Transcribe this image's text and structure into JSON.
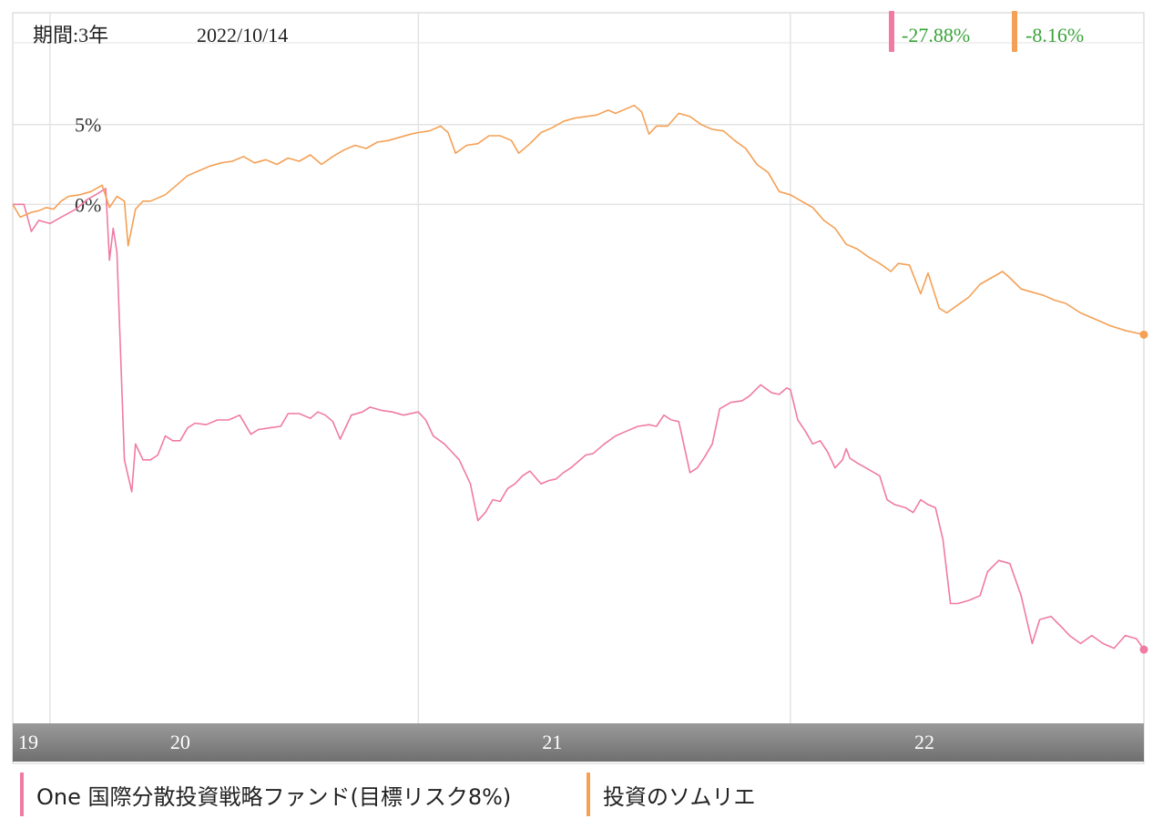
{
  "header": {
    "period_label": "期間:3年",
    "date": "2022/10/14"
  },
  "returns": [
    {
      "value": "-27.88%",
      "color": "#f07aa4"
    },
    {
      "value": "-8.16%",
      "color": "#f4a055"
    }
  ],
  "colors": {
    "series1": "#f07aa4",
    "series2": "#f4a055",
    "return_text": "#3aa33a",
    "grid": "#e3e3e3",
    "axis_band": "#8c8c8c"
  },
  "legend": [
    {
      "label": "One 国際分散投資戦略ファンド(目標リスク8%)",
      "color": "#f07aa4"
    },
    {
      "label": "投資のソムリエ",
      "color": "#f4a055"
    }
  ],
  "chart_data": {
    "type": "line",
    "ylabels": [
      {
        "value": 5,
        "label": "5%"
      },
      {
        "value": 0,
        "label": "0%"
      }
    ],
    "ylim": [
      -32.5,
      12.0
    ],
    "xlim": [
      2019.75,
      2022.79
    ],
    "x_ticks": [
      {
        "x": 2019.75,
        "label": "19"
      },
      {
        "x": 2020.2,
        "label": "20"
      },
      {
        "x": 2021.2,
        "label": "21"
      },
      {
        "x": 2022.2,
        "label": "22"
      }
    ],
    "x_gridlines": [
      2019.85,
      2020.84,
      2021.84
    ],
    "grid": true,
    "series": [
      {
        "color": "#f07aa4",
        "points": [
          [
            2019.75,
            0.0
          ],
          [
            2019.78,
            0.0
          ],
          [
            2019.8,
            -1.7
          ],
          [
            2019.82,
            -1.0
          ],
          [
            2019.85,
            -1.2
          ],
          [
            2019.88,
            -0.8
          ],
          [
            2019.92,
            -0.3
          ],
          [
            2019.95,
            0.3
          ],
          [
            2019.98,
            0.7
          ],
          [
            2020.0,
            1.0
          ],
          [
            2020.01,
            -3.5
          ],
          [
            2020.02,
            -1.5
          ],
          [
            2020.03,
            -3.0
          ],
          [
            2020.05,
            -16.0
          ],
          [
            2020.07,
            -18.0
          ],
          [
            2020.08,
            -15.0
          ],
          [
            2020.1,
            -16.0
          ],
          [
            2020.12,
            -16.0
          ],
          [
            2020.14,
            -15.7
          ],
          [
            2020.16,
            -14.5
          ],
          [
            2020.18,
            -14.8
          ],
          [
            2020.2,
            -14.8
          ],
          [
            2020.22,
            -14.0
          ],
          [
            2020.24,
            -13.7
          ],
          [
            2020.27,
            -13.8
          ],
          [
            2020.3,
            -13.5
          ],
          [
            2020.33,
            -13.5
          ],
          [
            2020.36,
            -13.2
          ],
          [
            2020.39,
            -14.4
          ],
          [
            2020.41,
            -14.1
          ],
          [
            2020.44,
            -14.0
          ],
          [
            2020.47,
            -13.9
          ],
          [
            2020.49,
            -13.1
          ],
          [
            2020.52,
            -13.1
          ],
          [
            2020.55,
            -13.4
          ],
          [
            2020.57,
            -13.0
          ],
          [
            2020.59,
            -13.2
          ],
          [
            2020.61,
            -13.6
          ],
          [
            2020.63,
            -14.7
          ],
          [
            2020.66,
            -13.2
          ],
          [
            2020.69,
            -13.0
          ],
          [
            2020.71,
            -12.7
          ],
          [
            2020.74,
            -12.9
          ],
          [
            2020.77,
            -13.0
          ],
          [
            2020.8,
            -13.2
          ],
          [
            2020.84,
            -13.0
          ],
          [
            2020.86,
            -13.5
          ],
          [
            2020.88,
            -14.5
          ],
          [
            2020.91,
            -15.0
          ],
          [
            2020.93,
            -15.5
          ],
          [
            2020.95,
            -16.0
          ],
          [
            2020.98,
            -17.5
          ],
          [
            2021.0,
            -19.8
          ],
          [
            2021.02,
            -19.3
          ],
          [
            2021.04,
            -18.5
          ],
          [
            2021.06,
            -18.6
          ],
          [
            2021.08,
            -17.8
          ],
          [
            2021.1,
            -17.5
          ],
          [
            2021.12,
            -17.0
          ],
          [
            2021.14,
            -16.7
          ],
          [
            2021.17,
            -17.5
          ],
          [
            2021.19,
            -17.3
          ],
          [
            2021.21,
            -17.2
          ],
          [
            2021.23,
            -16.8
          ],
          [
            2021.25,
            -16.5
          ],
          [
            2021.27,
            -16.1
          ],
          [
            2021.29,
            -15.7
          ],
          [
            2021.31,
            -15.6
          ],
          [
            2021.34,
            -15.0
          ],
          [
            2021.37,
            -14.5
          ],
          [
            2021.4,
            -14.2
          ],
          [
            2021.43,
            -13.9
          ],
          [
            2021.46,
            -13.8
          ],
          [
            2021.48,
            -13.9
          ],
          [
            2021.5,
            -13.2
          ],
          [
            2021.52,
            -13.5
          ],
          [
            2021.54,
            -13.6
          ],
          [
            2021.57,
            -16.8
          ],
          [
            2021.59,
            -16.5
          ],
          [
            2021.61,
            -15.8
          ],
          [
            2021.63,
            -15.0
          ],
          [
            2021.65,
            -12.8
          ],
          [
            2021.68,
            -12.4
          ],
          [
            2021.71,
            -12.3
          ],
          [
            2021.73,
            -12.0
          ],
          [
            2021.76,
            -11.3
          ],
          [
            2021.79,
            -11.8
          ],
          [
            2021.81,
            -11.9
          ],
          [
            2021.83,
            -11.5
          ],
          [
            2021.84,
            -11.6
          ],
          [
            2021.86,
            -13.5
          ],
          [
            2021.88,
            -14.2
          ],
          [
            2021.9,
            -15.0
          ],
          [
            2021.92,
            -14.8
          ],
          [
            2021.94,
            -15.5
          ],
          [
            2021.96,
            -16.5
          ],
          [
            2021.98,
            -16.0
          ],
          [
            2021.99,
            -15.3
          ],
          [
            2022.0,
            -15.9
          ],
          [
            2022.02,
            -16.2
          ],
          [
            2022.05,
            -16.6
          ],
          [
            2022.08,
            -17.0
          ],
          [
            2022.1,
            -18.5
          ],
          [
            2022.12,
            -18.8
          ],
          [
            2022.15,
            -19.0
          ],
          [
            2022.17,
            -19.3
          ],
          [
            2022.19,
            -18.5
          ],
          [
            2022.21,
            -18.8
          ],
          [
            2022.23,
            -19.0
          ],
          [
            2022.25,
            -21.0
          ],
          [
            2022.27,
            -25.0
          ],
          [
            2022.29,
            -25.0
          ],
          [
            2022.32,
            -24.8
          ],
          [
            2022.35,
            -24.5
          ],
          [
            2022.37,
            -23.0
          ],
          [
            2022.4,
            -22.3
          ],
          [
            2022.43,
            -22.5
          ],
          [
            2022.46,
            -24.5
          ],
          [
            2022.49,
            -27.5
          ],
          [
            2022.51,
            -26.0
          ],
          [
            2022.54,
            -25.8
          ],
          [
            2022.57,
            -26.5
          ],
          [
            2022.59,
            -27.0
          ],
          [
            2022.62,
            -27.5
          ],
          [
            2022.65,
            -27.0
          ],
          [
            2022.68,
            -27.5
          ],
          [
            2022.71,
            -27.8
          ],
          [
            2022.74,
            -27.0
          ],
          [
            2022.77,
            -27.2
          ],
          [
            2022.79,
            -27.88
          ]
        ]
      },
      {
        "color": "#f4a055",
        "points": [
          [
            2019.75,
            0.0
          ],
          [
            2019.77,
            -0.8
          ],
          [
            2019.8,
            -0.5
          ],
          [
            2019.82,
            -0.4
          ],
          [
            2019.84,
            -0.2
          ],
          [
            2019.86,
            -0.3
          ],
          [
            2019.88,
            0.2
          ],
          [
            2019.9,
            0.5
          ],
          [
            2019.93,
            0.6
          ],
          [
            2019.96,
            0.8
          ],
          [
            2019.99,
            1.2
          ],
          [
            2020.01,
            -0.2
          ],
          [
            2020.03,
            0.5
          ],
          [
            2020.05,
            0.2
          ],
          [
            2020.06,
            -2.6
          ],
          [
            2020.08,
            -0.3
          ],
          [
            2020.1,
            0.2
          ],
          [
            2020.12,
            0.2
          ],
          [
            2020.14,
            0.4
          ],
          [
            2020.16,
            0.6
          ],
          [
            2020.19,
            1.2
          ],
          [
            2020.22,
            1.8
          ],
          [
            2020.25,
            2.1
          ],
          [
            2020.28,
            2.4
          ],
          [
            2020.31,
            2.6
          ],
          [
            2020.34,
            2.7
          ],
          [
            2020.37,
            3.0
          ],
          [
            2020.4,
            2.6
          ],
          [
            2020.43,
            2.8
          ],
          [
            2020.46,
            2.5
          ],
          [
            2020.49,
            2.9
          ],
          [
            2020.52,
            2.7
          ],
          [
            2020.55,
            3.1
          ],
          [
            2020.58,
            2.5
          ],
          [
            2020.61,
            3.0
          ],
          [
            2020.64,
            3.4
          ],
          [
            2020.67,
            3.7
          ],
          [
            2020.7,
            3.5
          ],
          [
            2020.73,
            3.9
          ],
          [
            2020.76,
            4.0
          ],
          [
            2020.79,
            4.2
          ],
          [
            2020.82,
            4.4
          ],
          [
            2020.84,
            4.5
          ],
          [
            2020.87,
            4.6
          ],
          [
            2020.9,
            4.9
          ],
          [
            2020.92,
            4.5
          ],
          [
            2020.94,
            3.2
          ],
          [
            2020.97,
            3.7
          ],
          [
            2021.0,
            3.8
          ],
          [
            2021.03,
            4.3
          ],
          [
            2021.06,
            4.3
          ],
          [
            2021.09,
            4.0
          ],
          [
            2021.11,
            3.2
          ],
          [
            2021.14,
            3.8
          ],
          [
            2021.17,
            4.5
          ],
          [
            2021.2,
            4.8
          ],
          [
            2021.23,
            5.2
          ],
          [
            2021.26,
            5.4
          ],
          [
            2021.29,
            5.5
          ],
          [
            2021.32,
            5.6
          ],
          [
            2021.35,
            5.9
          ],
          [
            2021.37,
            5.7
          ],
          [
            2021.4,
            6.0
          ],
          [
            2021.42,
            6.2
          ],
          [
            2021.44,
            5.8
          ],
          [
            2021.46,
            4.4
          ],
          [
            2021.48,
            4.9
          ],
          [
            2021.51,
            4.9
          ],
          [
            2021.54,
            5.7
          ],
          [
            2021.57,
            5.5
          ],
          [
            2021.6,
            5.0
          ],
          [
            2021.63,
            4.7
          ],
          [
            2021.66,
            4.6
          ],
          [
            2021.69,
            4.0
          ],
          [
            2021.72,
            3.5
          ],
          [
            2021.75,
            2.5
          ],
          [
            2021.78,
            2.0
          ],
          [
            2021.81,
            0.8
          ],
          [
            2021.84,
            0.6
          ],
          [
            2021.87,
            0.2
          ],
          [
            2021.9,
            -0.2
          ],
          [
            2021.93,
            -1.0
          ],
          [
            2021.96,
            -1.5
          ],
          [
            2021.99,
            -2.5
          ],
          [
            2022.02,
            -2.8
          ],
          [
            2022.05,
            -3.3
          ],
          [
            2022.08,
            -3.7
          ],
          [
            2022.11,
            -4.2
          ],
          [
            2022.13,
            -3.7
          ],
          [
            2022.16,
            -3.8
          ],
          [
            2022.19,
            -5.6
          ],
          [
            2022.21,
            -4.3
          ],
          [
            2022.24,
            -6.5
          ],
          [
            2022.26,
            -6.8
          ],
          [
            2022.29,
            -6.3
          ],
          [
            2022.32,
            -5.8
          ],
          [
            2022.35,
            -5.0
          ],
          [
            2022.38,
            -4.6
          ],
          [
            2022.41,
            -4.2
          ],
          [
            2022.43,
            -4.6
          ],
          [
            2022.46,
            -5.3
          ],
          [
            2022.49,
            -5.5
          ],
          [
            2022.52,
            -5.7
          ],
          [
            2022.55,
            -6.0
          ],
          [
            2022.58,
            -6.2
          ],
          [
            2022.62,
            -6.8
          ],
          [
            2022.66,
            -7.2
          ],
          [
            2022.7,
            -7.6
          ],
          [
            2022.74,
            -7.9
          ],
          [
            2022.79,
            -8.16
          ]
        ]
      }
    ]
  }
}
